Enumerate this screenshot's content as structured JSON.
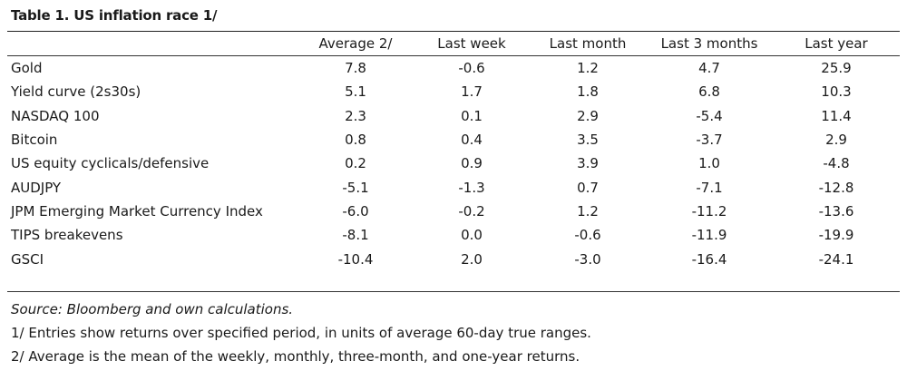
{
  "title": "Table 1. US inflation race 1/",
  "columns": [
    "",
    "Average 2/",
    "Last week",
    "Last month",
    "Last 3 months",
    "Last year"
  ],
  "rows": [
    {
      "label": "Gold",
      "values": [
        "7.8",
        "-0.6",
        "1.2",
        "4.7",
        "25.9"
      ]
    },
    {
      "label": "Yield curve (2s30s)",
      "values": [
        "5.1",
        "1.7",
        "1.8",
        "6.8",
        "10.3"
      ]
    },
    {
      "label": "NASDAQ 100",
      "values": [
        "2.3",
        "0.1",
        "2.9",
        "-5.4",
        "11.4"
      ]
    },
    {
      "label": "Bitcoin",
      "values": [
        "0.8",
        "0.4",
        "3.5",
        "-3.7",
        "2.9"
      ]
    },
    {
      "label": "US equity cyclicals/defensive",
      "values": [
        "0.2",
        "0.9",
        "3.9",
        "1.0",
        "-4.8"
      ]
    },
    {
      "label": "AUDJPY",
      "values": [
        "-5.1",
        "-1.3",
        "0.7",
        "-7.1",
        "-12.8"
      ]
    },
    {
      "label": "JPM Emerging Market Currency Index",
      "values": [
        "-6.0",
        "-0.2",
        "1.2",
        "-11.2",
        "-13.6"
      ]
    },
    {
      "label": "TIPS breakevens",
      "values": [
        "-8.1",
        "0.0",
        "-0.6",
        "-11.9",
        "-19.9"
      ]
    },
    {
      "label": "GSCI",
      "values": [
        "-10.4",
        "2.0",
        "-3.0",
        "-16.4",
        "-24.1"
      ]
    }
  ],
  "notes": {
    "source": "Source: Bloomberg and own calculations.",
    "note1": "1/ Entries show returns over specified period, in units of average 60-day true ranges.",
    "note2": "2/ Average is the mean of the weekly, monthly, three-month, and one-year returns."
  }
}
